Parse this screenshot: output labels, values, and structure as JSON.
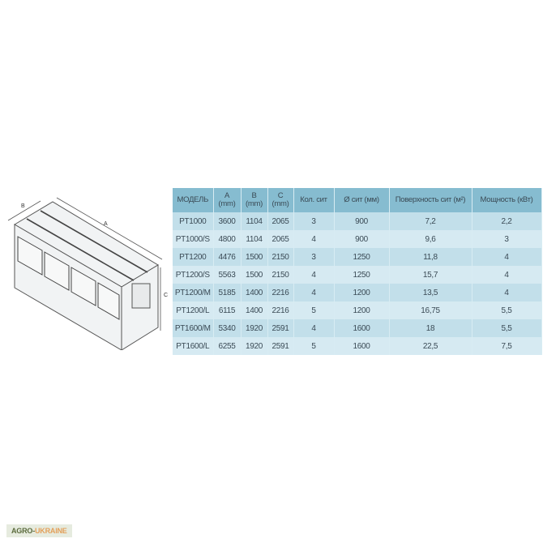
{
  "diagram": {
    "labels": {
      "a": "A",
      "b": "B",
      "c": "C"
    }
  },
  "table": {
    "headers": [
      {
        "line1": "МОДЕЛЬ",
        "line2": ""
      },
      {
        "line1": "A",
        "line2": "(mm)"
      },
      {
        "line1": "B",
        "line2": "(mm)"
      },
      {
        "line1": "C",
        "line2": "(mm)"
      },
      {
        "line1": "Кол. сит",
        "line2": ""
      },
      {
        "line1": "Ø сит (мм)",
        "line2": ""
      },
      {
        "line1": "Поверхность сит (м²)",
        "line2": ""
      },
      {
        "line1": "Мощность (кВт)",
        "line2": ""
      }
    ],
    "rows": [
      [
        "PT1000",
        "3600",
        "1104",
        "2065",
        "3",
        "900",
        "7,2",
        "2,2"
      ],
      [
        "PT1000/S",
        "4800",
        "1104",
        "2065",
        "4",
        "900",
        "9,6",
        "3"
      ],
      [
        "PT1200",
        "4476",
        "1500",
        "2150",
        "3",
        "1250",
        "11,8",
        "4"
      ],
      [
        "PT1200/S",
        "5563",
        "1500",
        "2150",
        "4",
        "1250",
        "15,7",
        "4"
      ],
      [
        "PT1200/M",
        "5185",
        "1400",
        "2216",
        "4",
        "1200",
        "13,5",
        "4"
      ],
      [
        "PT1200/L",
        "6115",
        "1400",
        "2216",
        "5",
        "1200",
        "16,75",
        "5,5"
      ],
      [
        "PT1600/M",
        "5340",
        "1920",
        "2591",
        "4",
        "1600",
        "18",
        "5,5"
      ],
      [
        "PT1600/L",
        "6255",
        "1920",
        "2591",
        "5",
        "1600",
        "22,5",
        "7,5"
      ]
    ]
  },
  "watermark": {
    "part1": "AGRO-",
    "part2": "UKRAINE"
  },
  "colors": {
    "header": "#86bcd0",
    "row_odd": "#c2dfea",
    "row_even": "#d6eaf2",
    "watermark_green": "#5b6b3c",
    "watermark_orange": "#e3a05a"
  }
}
